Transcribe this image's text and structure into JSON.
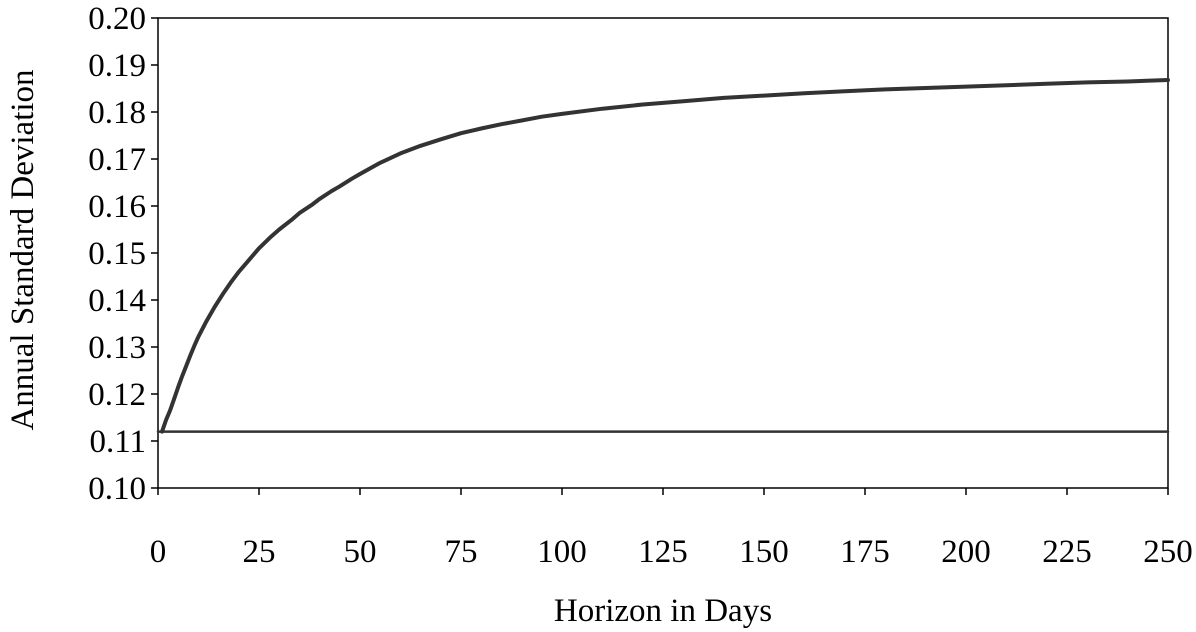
{
  "chart_data": {
    "type": "line",
    "title": "",
    "xlabel": "Horizon in Days",
    "ylabel": "Annual Standard Deviation",
    "xlim": [
      0,
      250
    ],
    "ylim": [
      0.1,
      0.2
    ],
    "x_ticks": [
      "0",
      "25",
      "50",
      "75",
      "100",
      "125",
      "150",
      "175",
      "200",
      "225",
      "250"
    ],
    "y_ticks": [
      "0.10",
      "0.11",
      "0.12",
      "0.13",
      "0.14",
      "0.15",
      "0.16",
      "0.17",
      "0.18",
      "0.19",
      "0.20"
    ],
    "grid": false,
    "legend": "none",
    "series": [
      {
        "x": [
          1,
          2,
          3,
          4,
          5,
          6,
          7,
          8,
          9,
          10,
          12,
          14,
          16,
          18,
          20,
          22,
          25,
          28,
          30,
          33,
          35,
          38,
          40,
          43,
          45,
          48,
          50,
          55,
          60,
          65,
          70,
          75,
          80,
          85,
          90,
          95,
          100,
          110,
          120,
          130,
          140,
          150,
          160,
          170,
          180,
          190,
          200,
          210,
          220,
          230,
          240,
          250
        ],
        "y": [
          0.112,
          0.1145,
          0.1165,
          0.119,
          0.1215,
          0.1238,
          0.126,
          0.1282,
          0.1303,
          0.1322,
          0.1355,
          0.1385,
          0.1412,
          0.1437,
          0.146,
          0.148,
          0.151,
          0.1535,
          0.155,
          0.157,
          0.1585,
          0.1602,
          0.1615,
          0.1632,
          0.1642,
          0.1658,
          0.1668,
          0.1692,
          0.1712,
          0.1728,
          0.1742,
          0.1755,
          0.1765,
          0.1774,
          0.1782,
          0.179,
          0.1796,
          0.1807,
          0.1816,
          0.1823,
          0.183,
          0.1835,
          0.184,
          0.1844,
          0.1848,
          0.1851,
          0.1854,
          0.1857,
          0.186,
          0.1863,
          0.1865,
          0.1868
        ],
        "color": "#333333"
      },
      {
        "x": [
          0,
          250
        ],
        "y": [
          0.112,
          0.112
        ],
        "color": "#333333"
      }
    ]
  }
}
